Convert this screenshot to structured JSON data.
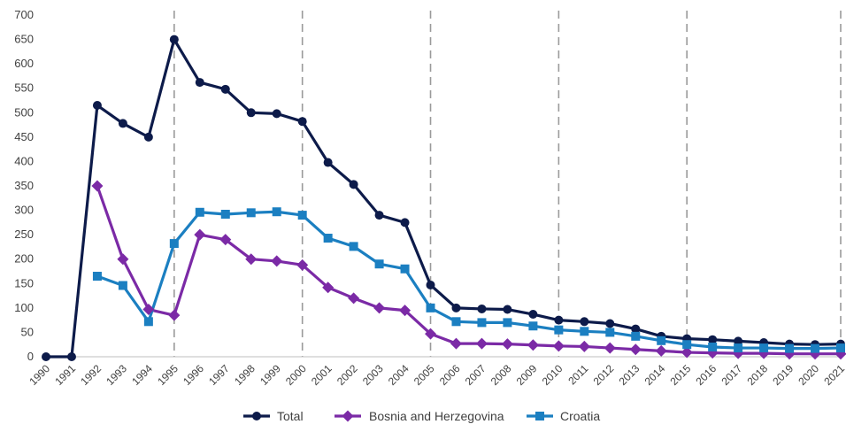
{
  "chart_data": {
    "type": "line",
    "title": "",
    "xlabel": "",
    "ylabel": "",
    "ylim": [
      0,
      700
    ],
    "yticks": [
      0,
      50,
      100,
      150,
      200,
      250,
      300,
      350,
      400,
      450,
      500,
      550,
      600,
      650,
      700
    ],
    "grid": "dashed vertical lines every 5 years",
    "dashed_years": [
      1995,
      2000,
      2005,
      2010,
      2015,
      2021
    ],
    "legend_position": "bottom",
    "x": [
      1990,
      1991,
      1992,
      1993,
      1994,
      1995,
      1996,
      1997,
      1998,
      1999,
      2000,
      2001,
      2002,
      2003,
      2004,
      2005,
      2006,
      2007,
      2008,
      2009,
      2010,
      2011,
      2012,
      2013,
      2014,
      2015,
      2016,
      2017,
      2018,
      2019,
      2020,
      2021
    ],
    "series": [
      {
        "name": "Total",
        "color": "#0d1b4a",
        "marker": "circle",
        "values": [
          0,
          0,
          515,
          478,
          450,
          650,
          562,
          548,
          500,
          498,
          482,
          398,
          353,
          290,
          275,
          147,
          100,
          98,
          97,
          87,
          75,
          72,
          68,
          57,
          42,
          37,
          35,
          32,
          29,
          26,
          25,
          26
        ]
      },
      {
        "name": "Bosnia and Herzegovina",
        "color": "#7b2aa6",
        "marker": "diamond",
        "values": [
          null,
          null,
          350,
          200,
          97,
          85,
          250,
          240,
          200,
          196,
          188,
          142,
          120,
          100,
          95,
          47,
          27,
          27,
          26,
          24,
          22,
          21,
          18,
          15,
          12,
          9,
          8,
          7,
          7,
          6,
          6,
          6
        ]
      },
      {
        "name": "Croatia",
        "color": "#1b7fc1",
        "marker": "square",
        "values": [
          null,
          null,
          165,
          146,
          72,
          232,
          296,
          292,
          295,
          297,
          290,
          243,
          226,
          190,
          180,
          100,
          72,
          70,
          70,
          63,
          55,
          52,
          50,
          42,
          33,
          25,
          20,
          18,
          18,
          17,
          17,
          18
        ]
      }
    ]
  }
}
